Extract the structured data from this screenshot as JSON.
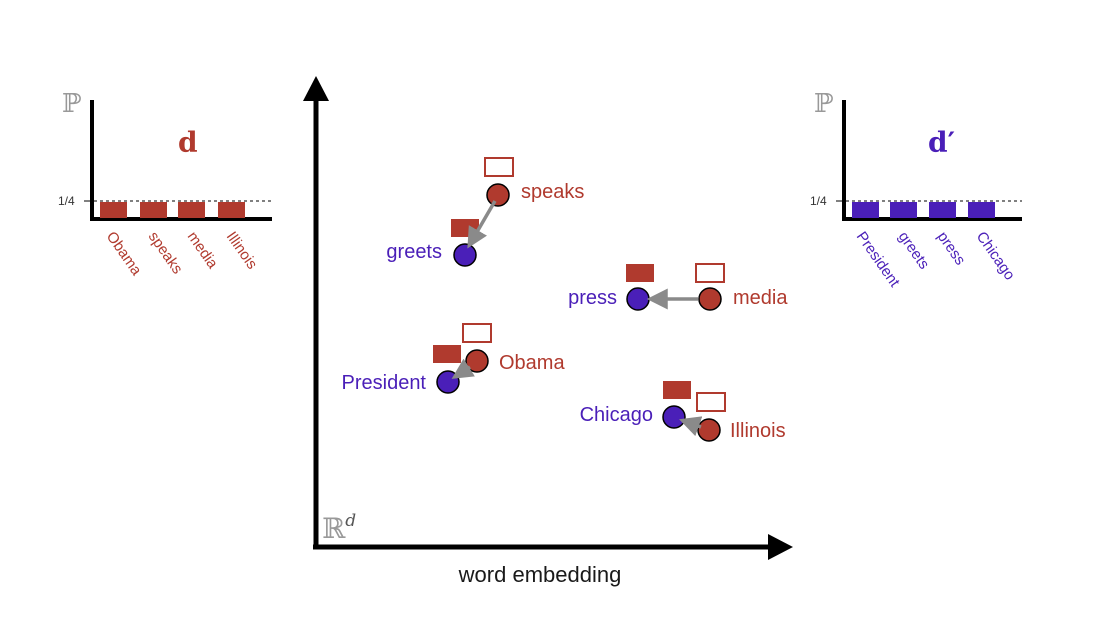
{
  "colors": {
    "red": "#b03a2e",
    "blue": "#4a1fb8",
    "arrow": "#8a8a8a",
    "axis": "#000000",
    "text": "#1a1a1a"
  },
  "left_histogram": {
    "axis_symbol": "ℙ",
    "doc_label": "d",
    "level_label": "1/4",
    "bar_level": 0.25,
    "words": [
      "Obama",
      "speaks",
      "media",
      "Illinois"
    ]
  },
  "right_histogram": {
    "axis_symbol": "ℙ",
    "doc_label": "d′",
    "level_label": "1/4",
    "bar_level": 0.25,
    "words": [
      "President",
      "greets",
      "press",
      "Chicago"
    ]
  },
  "embedding": {
    "space_label": "ℝ",
    "space_superscript": "d",
    "xlabel": "word embedding",
    "words": {
      "speaks": "speaks",
      "greets": "greets",
      "press": "press",
      "media": "media",
      "obama": "Obama",
      "president": "President",
      "chicago": "Chicago",
      "illinois": "Illinois"
    }
  }
}
